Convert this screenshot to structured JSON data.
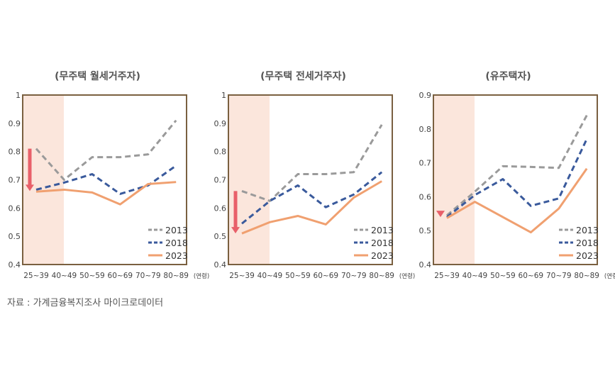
{
  "source": "자료 : 가계금융복지조사 마이크로데이터",
  "chart_data": [
    {
      "type": "line",
      "title": "(무주택 월세거주자)",
      "categories": [
        "25~39",
        "40~49",
        "50~59",
        "60~69",
        "70~79",
        "80~89"
      ],
      "xunit": "(연령)",
      "ylim": [
        0.4,
        1.0
      ],
      "yticks": [
        "0.4",
        "0.5",
        "0.6",
        "0.7",
        "0.8",
        "0.9",
        "1"
      ],
      "highlight_categories": [
        "25~39"
      ],
      "arrow": {
        "from": 0.81,
        "to": 0.66
      },
      "legend": "bottom-right",
      "series": [
        {
          "name": "2013",
          "values": [
            0.81,
            0.7,
            0.78,
            0.78,
            0.79,
            0.91
          ],
          "color": "#9a9a9a",
          "style": "dashed"
        },
        {
          "name": "2018",
          "values": [
            0.665,
            0.69,
            0.72,
            0.65,
            0.68,
            0.75
          ],
          "color": "#3a5a9c",
          "style": "dashed"
        },
        {
          "name": "2023",
          "values": [
            0.658,
            0.665,
            0.655,
            0.613,
            0.685,
            0.692
          ],
          "color": "#f0a070",
          "style": "solid"
        }
      ]
    },
    {
      "type": "line",
      "title": "(무주택 전세거주자)",
      "categories": [
        "25~39",
        "40~49",
        "50~59",
        "60~69",
        "70~79",
        "80~89"
      ],
      "xunit": "(연령)",
      "ylim": [
        0.4,
        1.0
      ],
      "yticks": [
        "0.4",
        "0.5",
        "0.6",
        "0.7",
        "0.8",
        "0.9",
        "1"
      ],
      "highlight_categories": [
        "25~39"
      ],
      "arrow": {
        "from": 0.66,
        "to": 0.51
      },
      "legend": "bottom-right",
      "series": [
        {
          "name": "2013",
          "values": [
            0.66,
            0.625,
            0.72,
            0.72,
            0.727,
            0.895
          ],
          "color": "#9a9a9a",
          "style": "dashed"
        },
        {
          "name": "2018",
          "values": [
            0.545,
            0.625,
            0.68,
            0.603,
            0.648,
            0.727
          ],
          "color": "#3a5a9c",
          "style": "dashed"
        },
        {
          "name": "2023",
          "values": [
            0.51,
            0.55,
            0.572,
            0.542,
            0.637,
            0.695
          ],
          "color": "#f0a070",
          "style": "solid"
        }
      ]
    },
    {
      "type": "line",
      "title": "(유주택자)",
      "categories": [
        "25~39",
        "40~49",
        "50~59",
        "60~69",
        "70~79",
        "80~89"
      ],
      "xunit": "(연령)",
      "ylim": [
        0.4,
        0.9
      ],
      "yticks": [
        "0.4",
        "0.5",
        "0.6",
        "0.7",
        "0.8",
        "0.9"
      ],
      "highlight_categories": [
        "25~39"
      ],
      "arrow": {
        "from": 0.55,
        "to": 0.54
      },
      "legend": "bottom-right",
      "series": [
        {
          "name": "2013",
          "values": [
            0.545,
            0.615,
            0.69,
            0.688,
            0.685,
            0.84
          ],
          "color": "#9a9a9a",
          "style": "dashed"
        },
        {
          "name": "2018",
          "values": [
            0.54,
            0.605,
            0.652,
            0.573,
            0.595,
            0.77
          ],
          "color": "#3a5a9c",
          "style": "dashed"
        },
        {
          "name": "2023",
          "values": [
            0.537,
            0.585,
            0.54,
            0.495,
            0.565,
            0.683
          ],
          "color": "#f0a070",
          "style": "solid"
        }
      ]
    }
  ],
  "colors": {
    "frame": "#7a6040",
    "highlight": "#fbe6dc",
    "arrow": "#e8606a",
    "text": "#444444"
  }
}
